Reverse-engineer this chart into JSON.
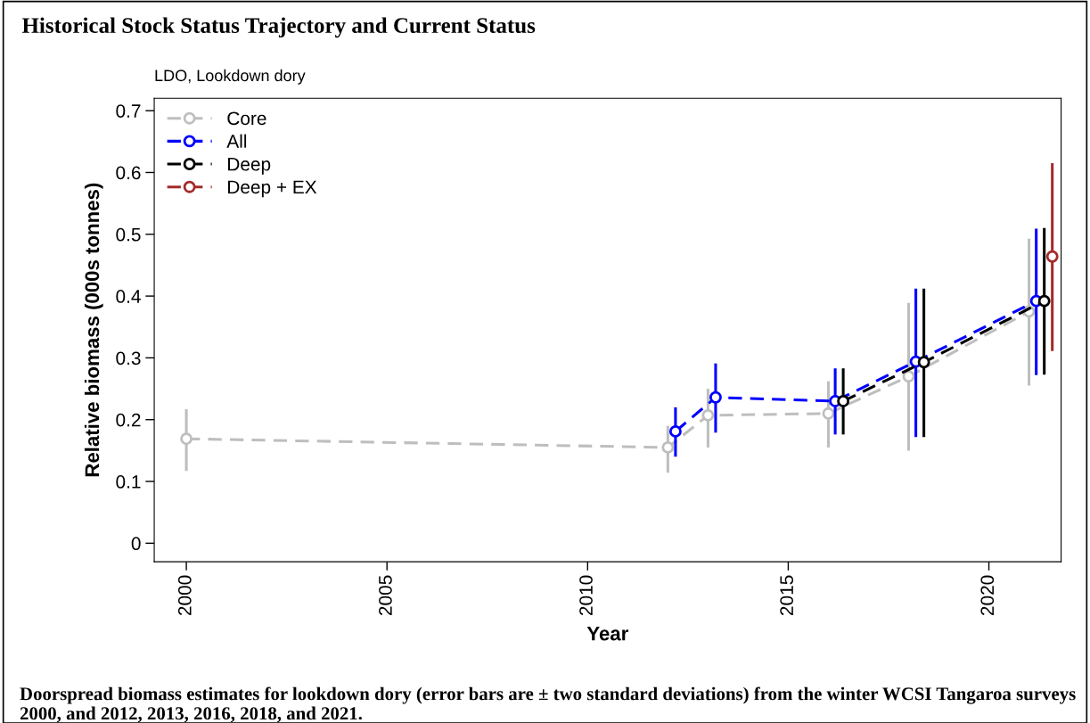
{
  "chart_data": {
    "type": "line",
    "title": "Historical Stock Status Trajectory and Current Status",
    "subtitle": "LDO, Lookdown dory",
    "xlabel": "Year",
    "ylabel": "Relative biomass (000s tonnes)",
    "annotations": [
      "Doorspread biomass estimates for lookdown dory (error bars are ± two standard deviations) from the winter WCSI Tangaroa surveys 2000, and 2012, 2013, 2016, 2018, and 2021."
    ],
    "xlim": [
      1999.2,
      2021.8
    ],
    "xticks": [
      2000,
      2005,
      2010,
      2015,
      2020
    ],
    "ylim": [
      -0.03,
      0.72
    ],
    "yticks": [
      0,
      0.1,
      0.2,
      0.3,
      0.4,
      0.5,
      0.6,
      0.7
    ],
    "grid": false,
    "legend": "top left",
    "marker": "circle",
    "line_style": "dashed",
    "series": [
      {
        "name": "Core",
        "color": "#bebebe",
        "x": [
          2000,
          2012,
          2013,
          2016,
          2018,
          2021
        ],
        "values": [
          0.169,
          0.155,
          0.207,
          0.21,
          0.27,
          0.375
        ],
        "errors": [
          [
            0.117,
            0.217
          ],
          [
            0.114,
            0.19
          ],
          [
            0.155,
            0.25
          ],
          [
            0.155,
            0.262
          ],
          [
            0.15,
            0.389
          ],
          [
            0.255,
            0.493
          ]
        ]
      },
      {
        "name": "All",
        "color": "#0000ff",
        "x": [
          2012.19,
          2013.19,
          2016.17,
          2018.18,
          2021.18
        ],
        "values": [
          0.181,
          0.236,
          0.23,
          0.294,
          0.392
        ],
        "errors": [
          [
            0.14,
            0.22
          ],
          [
            0.179,
            0.291
          ],
          [
            0.176,
            0.283
          ],
          [
            0.172,
            0.412
          ],
          [
            0.272,
            0.509
          ]
        ]
      },
      {
        "name": "Deep",
        "color": "#000000",
        "x": [
          2016.37,
          2018.38,
          2021.38
        ],
        "values": [
          0.23,
          0.293,
          0.392
        ],
        "errors": [
          [
            0.176,
            0.283
          ],
          [
            0.172,
            0.412
          ],
          [
            0.273,
            0.51
          ]
        ]
      },
      {
        "name": "Deep + EX",
        "color": "#a52a2a",
        "x": [
          2021.58
        ],
        "values": [
          0.464
        ],
        "errors": [
          [
            0.311,
            0.615
          ]
        ]
      }
    ]
  }
}
